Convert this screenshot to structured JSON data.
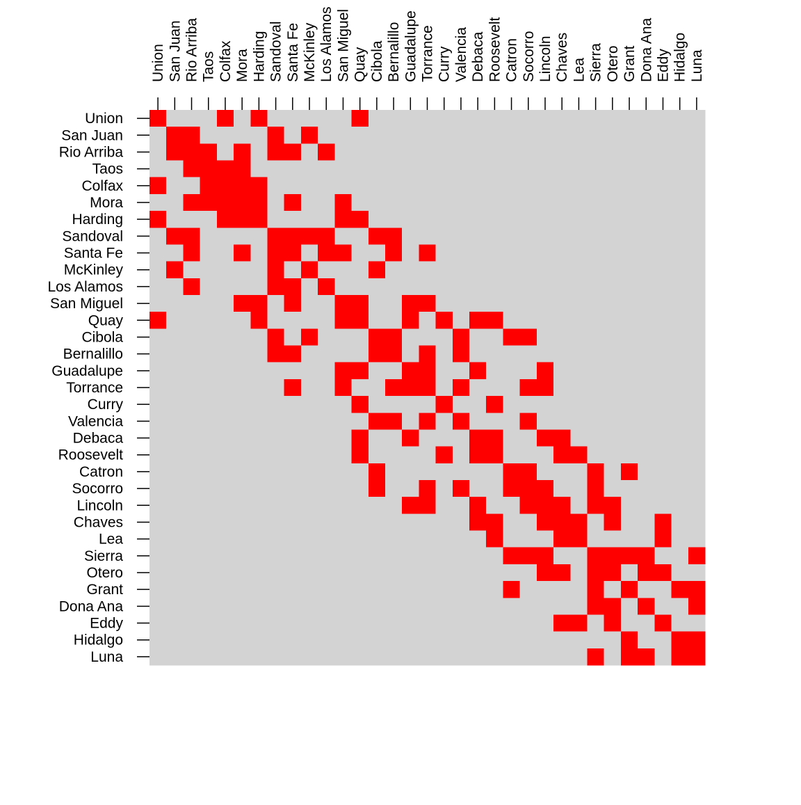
{
  "chart_data": {
    "type": "heatmap",
    "categories": [
      "Union",
      "San Juan",
      "Rio Arriba",
      "Taos",
      "Colfax",
      "Mora",
      "Harding",
      "Sandoval",
      "Santa Fe",
      "McKinley",
      "Los Alamos",
      "San Miguel",
      "Quay",
      "Cibola",
      "Bernalillo",
      "Guadalupe",
      "Torrance",
      "Curry",
      "Valencia",
      "Debaca",
      "Roosevelt",
      "Catron",
      "Socorro",
      "Lincoln",
      "Chaves",
      "Lea",
      "Sierra",
      "Otero",
      "Grant",
      "Dona Ana",
      "Eddy",
      "Hidalgo",
      "Luna"
    ],
    "colors": [
      "#d3d3d3",
      "#ff0000"
    ],
    "values": [
      [
        1,
        0,
        0,
        0,
        1,
        0,
        1,
        0,
        0,
        0,
        0,
        0,
        1,
        0,
        0,
        0,
        0,
        0,
        0,
        0,
        0,
        0,
        0,
        0,
        0,
        0,
        0,
        0,
        0,
        0,
        0,
        0,
        0
      ],
      [
        0,
        1,
        1,
        0,
        0,
        0,
        0,
        1,
        0,
        1,
        0,
        0,
        0,
        0,
        0,
        0,
        0,
        0,
        0,
        0,
        0,
        0,
        0,
        0,
        0,
        0,
        0,
        0,
        0,
        0,
        0,
        0,
        0
      ],
      [
        0,
        1,
        1,
        1,
        0,
        1,
        0,
        1,
        1,
        0,
        1,
        0,
        0,
        0,
        0,
        0,
        0,
        0,
        0,
        0,
        0,
        0,
        0,
        0,
        0,
        0,
        0,
        0,
        0,
        0,
        0,
        0,
        0
      ],
      [
        0,
        0,
        1,
        1,
        1,
        1,
        0,
        0,
        0,
        0,
        0,
        0,
        0,
        0,
        0,
        0,
        0,
        0,
        0,
        0,
        0,
        0,
        0,
        0,
        0,
        0,
        0,
        0,
        0,
        0,
        0,
        0,
        0
      ],
      [
        1,
        0,
        0,
        1,
        1,
        1,
        1,
        0,
        0,
        0,
        0,
        0,
        0,
        0,
        0,
        0,
        0,
        0,
        0,
        0,
        0,
        0,
        0,
        0,
        0,
        0,
        0,
        0,
        0,
        0,
        0,
        0,
        0
      ],
      [
        0,
        0,
        1,
        1,
        1,
        1,
        1,
        0,
        1,
        0,
        0,
        1,
        0,
        0,
        0,
        0,
        0,
        0,
        0,
        0,
        0,
        0,
        0,
        0,
        0,
        0,
        0,
        0,
        0,
        0,
        0,
        0,
        0
      ],
      [
        1,
        0,
        0,
        0,
        1,
        1,
        1,
        0,
        0,
        0,
        0,
        1,
        1,
        0,
        0,
        0,
        0,
        0,
        0,
        0,
        0,
        0,
        0,
        0,
        0,
        0,
        0,
        0,
        0,
        0,
        0,
        0,
        0
      ],
      [
        0,
        1,
        1,
        0,
        0,
        0,
        0,
        1,
        1,
        1,
        1,
        0,
        0,
        1,
        1,
        0,
        0,
        0,
        0,
        0,
        0,
        0,
        0,
        0,
        0,
        0,
        0,
        0,
        0,
        0,
        0,
        0,
        0
      ],
      [
        0,
        0,
        1,
        0,
        0,
        1,
        0,
        1,
        1,
        0,
        1,
        1,
        0,
        0,
        1,
        0,
        1,
        0,
        0,
        0,
        0,
        0,
        0,
        0,
        0,
        0,
        0,
        0,
        0,
        0,
        0,
        0,
        0
      ],
      [
        0,
        1,
        0,
        0,
        0,
        0,
        0,
        1,
        0,
        1,
        0,
        0,
        0,
        1,
        0,
        0,
        0,
        0,
        0,
        0,
        0,
        0,
        0,
        0,
        0,
        0,
        0,
        0,
        0,
        0,
        0,
        0,
        0
      ],
      [
        0,
        0,
        1,
        0,
        0,
        0,
        0,
        1,
        1,
        0,
        1,
        0,
        0,
        0,
        0,
        0,
        0,
        0,
        0,
        0,
        0,
        0,
        0,
        0,
        0,
        0,
        0,
        0,
        0,
        0,
        0,
        0,
        0
      ],
      [
        0,
        0,
        0,
        0,
        0,
        1,
        1,
        0,
        1,
        0,
        0,
        1,
        1,
        0,
        0,
        1,
        1,
        0,
        0,
        0,
        0,
        0,
        0,
        0,
        0,
        0,
        0,
        0,
        0,
        0,
        0,
        0,
        0
      ],
      [
        1,
        0,
        0,
        0,
        0,
        0,
        1,
        0,
        0,
        0,
        0,
        1,
        1,
        0,
        0,
        1,
        0,
        1,
        0,
        1,
        1,
        0,
        0,
        0,
        0,
        0,
        0,
        0,
        0,
        0,
        0,
        0,
        0
      ],
      [
        0,
        0,
        0,
        0,
        0,
        0,
        0,
        1,
        0,
        1,
        0,
        0,
        0,
        1,
        1,
        0,
        0,
        0,
        1,
        0,
        0,
        1,
        1,
        0,
        0,
        0,
        0,
        0,
        0,
        0,
        0,
        0,
        0
      ],
      [
        0,
        0,
        0,
        0,
        0,
        0,
        0,
        1,
        1,
        0,
        0,
        0,
        0,
        1,
        1,
        0,
        1,
        0,
        1,
        0,
        0,
        0,
        0,
        0,
        0,
        0,
        0,
        0,
        0,
        0,
        0,
        0,
        0
      ],
      [
        0,
        0,
        0,
        0,
        0,
        0,
        0,
        0,
        0,
        0,
        0,
        1,
        1,
        0,
        0,
        1,
        1,
        0,
        0,
        1,
        0,
        0,
        0,
        1,
        0,
        0,
        0,
        0,
        0,
        0,
        0,
        0,
        0
      ],
      [
        0,
        0,
        0,
        0,
        0,
        0,
        0,
        0,
        1,
        0,
        0,
        1,
        0,
        0,
        1,
        1,
        1,
        0,
        1,
        0,
        0,
        0,
        1,
        1,
        0,
        0,
        0,
        0,
        0,
        0,
        0,
        0,
        0
      ],
      [
        0,
        0,
        0,
        0,
        0,
        0,
        0,
        0,
        0,
        0,
        0,
        0,
        1,
        0,
        0,
        0,
        0,
        1,
        0,
        0,
        1,
        0,
        0,
        0,
        0,
        0,
        0,
        0,
        0,
        0,
        0,
        0,
        0
      ],
      [
        0,
        0,
        0,
        0,
        0,
        0,
        0,
        0,
        0,
        0,
        0,
        0,
        0,
        1,
        1,
        0,
        1,
        0,
        1,
        0,
        0,
        0,
        1,
        0,
        0,
        0,
        0,
        0,
        0,
        0,
        0,
        0,
        0
      ],
      [
        0,
        0,
        0,
        0,
        0,
        0,
        0,
        0,
        0,
        0,
        0,
        0,
        1,
        0,
        0,
        1,
        0,
        0,
        0,
        1,
        1,
        0,
        0,
        1,
        1,
        0,
        0,
        0,
        0,
        0,
        0,
        0,
        0
      ],
      [
        0,
        0,
        0,
        0,
        0,
        0,
        0,
        0,
        0,
        0,
        0,
        0,
        1,
        0,
        0,
        0,
        0,
        1,
        0,
        1,
        1,
        0,
        0,
        0,
        1,
        1,
        0,
        0,
        0,
        0,
        0,
        0,
        0
      ],
      [
        0,
        0,
        0,
        0,
        0,
        0,
        0,
        0,
        0,
        0,
        0,
        0,
        0,
        1,
        0,
        0,
        0,
        0,
        0,
        0,
        0,
        1,
        1,
        0,
        0,
        0,
        1,
        0,
        1,
        0,
        0,
        0,
        0
      ],
      [
        0,
        0,
        0,
        0,
        0,
        0,
        0,
        0,
        0,
        0,
        0,
        0,
        0,
        1,
        0,
        0,
        1,
        0,
        1,
        0,
        0,
        1,
        1,
        1,
        0,
        0,
        1,
        0,
        0,
        0,
        0,
        0,
        0
      ],
      [
        0,
        0,
        0,
        0,
        0,
        0,
        0,
        0,
        0,
        0,
        0,
        0,
        0,
        0,
        0,
        1,
        1,
        0,
        0,
        1,
        0,
        0,
        1,
        1,
        1,
        0,
        1,
        1,
        0,
        0,
        0,
        0,
        0
      ],
      [
        0,
        0,
        0,
        0,
        0,
        0,
        0,
        0,
        0,
        0,
        0,
        0,
        0,
        0,
        0,
        0,
        0,
        0,
        0,
        1,
        1,
        0,
        0,
        1,
        1,
        1,
        0,
        1,
        0,
        0,
        1,
        0,
        0
      ],
      [
        0,
        0,
        0,
        0,
        0,
        0,
        0,
        0,
        0,
        0,
        0,
        0,
        0,
        0,
        0,
        0,
        0,
        0,
        0,
        0,
        1,
        0,
        0,
        0,
        1,
        1,
        0,
        0,
        0,
        0,
        1,
        0,
        0
      ],
      [
        0,
        0,
        0,
        0,
        0,
        0,
        0,
        0,
        0,
        0,
        0,
        0,
        0,
        0,
        0,
        0,
        0,
        0,
        0,
        0,
        0,
        1,
        1,
        1,
        0,
        0,
        1,
        1,
        1,
        1,
        0,
        0,
        1
      ],
      [
        0,
        0,
        0,
        0,
        0,
        0,
        0,
        0,
        0,
        0,
        0,
        0,
        0,
        0,
        0,
        0,
        0,
        0,
        0,
        0,
        0,
        0,
        0,
        1,
        1,
        0,
        1,
        1,
        0,
        1,
        1,
        0,
        0
      ],
      [
        0,
        0,
        0,
        0,
        0,
        0,
        0,
        0,
        0,
        0,
        0,
        0,
        0,
        0,
        0,
        0,
        0,
        0,
        0,
        0,
        0,
        1,
        0,
        0,
        0,
        0,
        1,
        0,
        1,
        0,
        0,
        1,
        1
      ],
      [
        0,
        0,
        0,
        0,
        0,
        0,
        0,
        0,
        0,
        0,
        0,
        0,
        0,
        0,
        0,
        0,
        0,
        0,
        0,
        0,
        0,
        0,
        0,
        0,
        0,
        0,
        1,
        1,
        0,
        1,
        0,
        0,
        1
      ],
      [
        0,
        0,
        0,
        0,
        0,
        0,
        0,
        0,
        0,
        0,
        0,
        0,
        0,
        0,
        0,
        0,
        0,
        0,
        0,
        0,
        0,
        0,
        0,
        0,
        1,
        1,
        0,
        1,
        0,
        0,
        1,
        0,
        0
      ],
      [
        0,
        0,
        0,
        0,
        0,
        0,
        0,
        0,
        0,
        0,
        0,
        0,
        0,
        0,
        0,
        0,
        0,
        0,
        0,
        0,
        0,
        0,
        0,
        0,
        0,
        0,
        0,
        0,
        1,
        0,
        0,
        1,
        1
      ],
      [
        0,
        0,
        0,
        0,
        0,
        0,
        0,
        0,
        0,
        0,
        0,
        0,
        0,
        0,
        0,
        0,
        0,
        0,
        0,
        0,
        0,
        0,
        0,
        0,
        0,
        0,
        1,
        0,
        1,
        1,
        0,
        1,
        1
      ]
    ]
  }
}
